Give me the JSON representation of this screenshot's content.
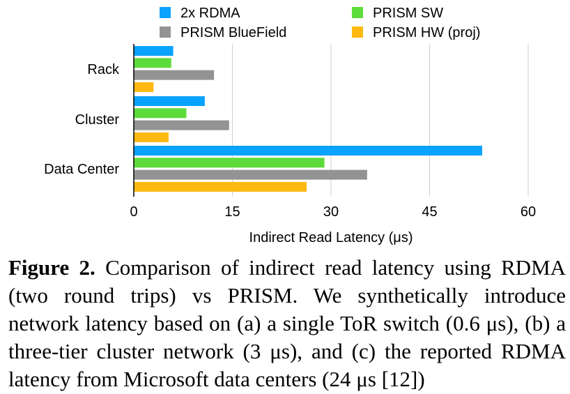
{
  "chart_data": {
    "type": "bar",
    "orientation": "horizontal",
    "categories": [
      "Rack",
      "Cluster",
      "Data Center"
    ],
    "series": [
      {
        "name": "2x RDMA",
        "color": "#0aa2ff",
        "values": [
          6.0,
          10.8,
          53.0
        ]
      },
      {
        "name": "PRISM SW",
        "color": "#5ddb3b",
        "values": [
          5.7,
          8.0,
          29.0
        ]
      },
      {
        "name": "PRISM BlueField",
        "color": "#939393",
        "values": [
          12.2,
          14.5,
          35.5
        ]
      },
      {
        "name": "PRISM HW (proj)",
        "color": "#fdb912",
        "values": [
          3.0,
          5.3,
          26.3
        ]
      }
    ],
    "xlabel": "Indirect Read Latency (μs)",
    "xlim": [
      0,
      60
    ],
    "xticks": [
      "0",
      "15",
      "30",
      "45",
      "60"
    ],
    "grid": true,
    "legend_placement": "top"
  },
  "caption": {
    "label": "Figure 2.",
    "text": "Comparison of indirect read latency using RDMA (two round trips) vs PRISM. We synthetically introduce network latency based on (a) a single ToR switch (0.6 μs), (b) a three-tier cluster network (3 μs), and (c) the reported RDMA latency from Microsoft data centers (24 μs [12])"
  }
}
